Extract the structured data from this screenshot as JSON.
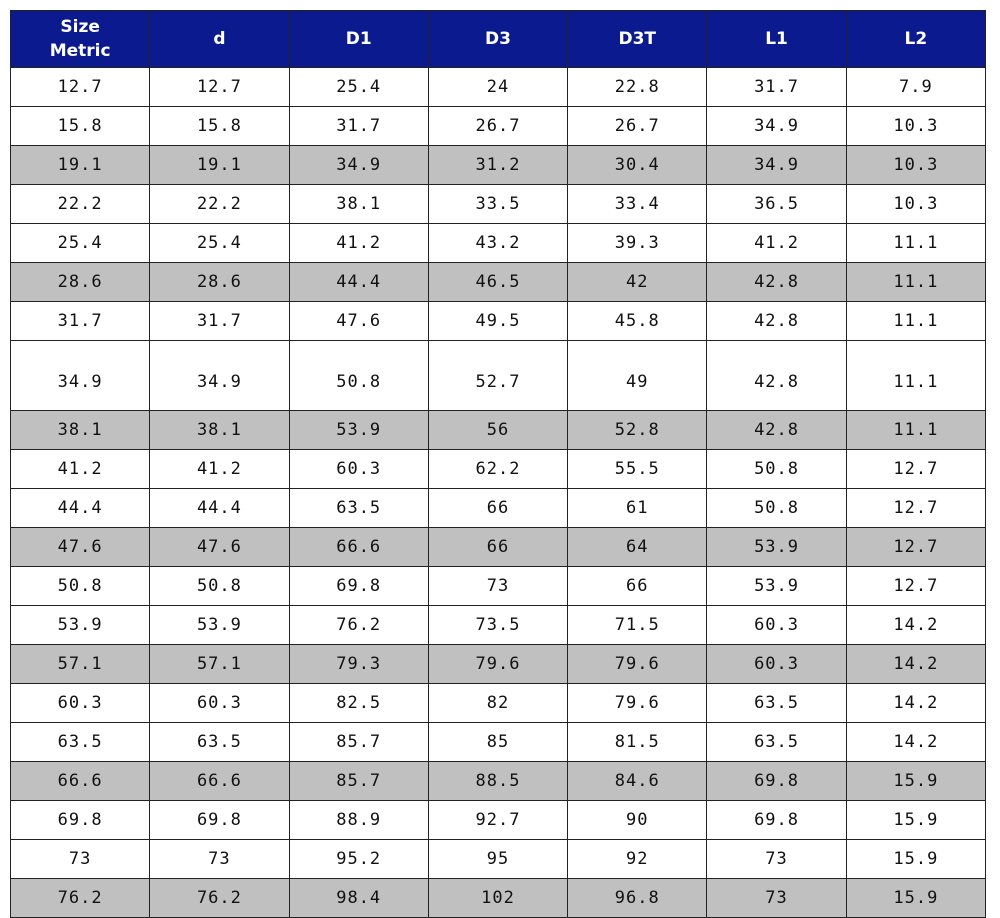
{
  "table": {
    "header": [
      "Size\nMetric",
      "d",
      "D1",
      "D3",
      "D3T",
      "L1",
      "L2"
    ],
    "rows": [
      [
        "12.7",
        "12.7",
        "25.4",
        "24",
        "22.8",
        "31.7",
        "7.9"
      ],
      [
        "15.8",
        "15.8",
        "31.7",
        "26.7",
        "26.7",
        "34.9",
        "10.3"
      ],
      [
        "19.1",
        "19.1",
        "34.9",
        "31.2",
        "30.4",
        "34.9",
        "10.3"
      ],
      [
        "22.2",
        "22.2",
        "38.1",
        "33.5",
        "33.4",
        "36.5",
        "10.3"
      ],
      [
        "25.4",
        "25.4",
        "41.2",
        "43.2",
        "39.3",
        "41.2",
        "11.1"
      ],
      [
        "28.6",
        "28.6",
        "44.4",
        "46.5",
        "42",
        "42.8",
        "11.1"
      ],
      [
        "31.7",
        "31.7",
        "47.6",
        "49.5",
        "45.8",
        "42.8",
        "11.1"
      ],
      [
        "34.9",
        "34.9",
        "50.8",
        "52.7",
        "49",
        "42.8",
        "11.1"
      ],
      [
        "38.1",
        "38.1",
        "53.9",
        "56",
        "52.8",
        "42.8",
        "11.1"
      ],
      [
        "41.2",
        "41.2",
        "60.3",
        "62.2",
        "55.5",
        "50.8",
        "12.7"
      ],
      [
        "44.4",
        "44.4",
        "63.5",
        "66",
        "61",
        "50.8",
        "12.7"
      ],
      [
        "47.6",
        "47.6",
        "66.6",
        "66",
        "64",
        "53.9",
        "12.7"
      ],
      [
        "50.8",
        "50.8",
        "69.8",
        "73",
        "66",
        "53.9",
        "12.7"
      ],
      [
        "53.9",
        "53.9",
        "76.2",
        "73.5",
        "71.5",
        "60.3",
        "14.2"
      ],
      [
        "57.1",
        "57.1",
        "79.3",
        "79.6",
        "79.6",
        "60.3",
        "14.2"
      ],
      [
        "60.3",
        "60.3",
        "82.5",
        "82",
        "79.6",
        "63.5",
        "14.2"
      ],
      [
        "63.5",
        "63.5",
        "85.7",
        "85",
        "81.5",
        "63.5",
        "14.2"
      ],
      [
        "66.6",
        "66.6",
        "85.7",
        "88.5",
        "84.6",
        "69.8",
        "15.9"
      ],
      [
        "69.8",
        "69.8",
        "88.9",
        "92.7",
        "90",
        "69.8",
        "15.9"
      ],
      [
        "73",
        "73",
        "95.2",
        "95",
        "92",
        "73",
        "15.9"
      ],
      [
        "76.2",
        "76.2",
        "98.4",
        "102",
        "96.8",
        "73",
        "15.9"
      ]
    ]
  }
}
